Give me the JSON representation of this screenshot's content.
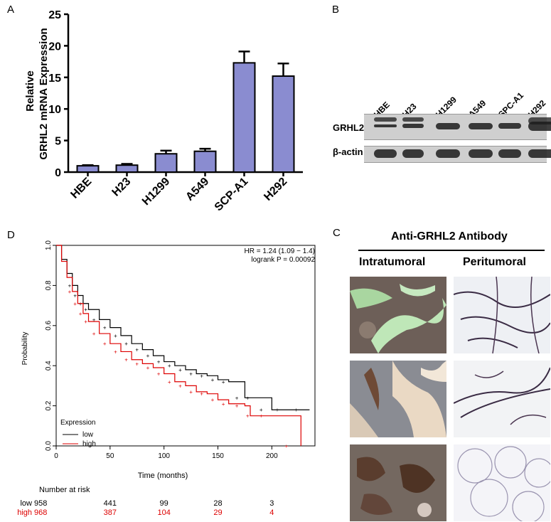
{
  "panels": {
    "a": "A",
    "b": "B",
    "c": "C",
    "d": "D"
  },
  "chart_data": [
    {
      "type": "bar",
      "panel": "A",
      "title": "",
      "ylabel_line1": "Relative",
      "ylabel_line2": "GRHL2 mRNA Expression",
      "xlabel": "",
      "ylim": [
        0,
        25
      ],
      "yticks": [
        0,
        5,
        10,
        15,
        20,
        25
      ],
      "categories": [
        "HBE",
        "H23",
        "H1299",
        "A549",
        "SCP-A1",
        "H292"
      ],
      "values": [
        1.0,
        1.1,
        2.9,
        3.3,
        17.3,
        15.2
      ],
      "errors": [
        0.1,
        0.2,
        0.5,
        0.4,
        1.8,
        2.0
      ],
      "bar_color": "#8a8cd0"
    },
    {
      "type": "line",
      "panel": "D",
      "title": "",
      "xlabel": "Time (months)",
      "ylabel": "Probability",
      "xlim": [
        0,
        240
      ],
      "ylim": [
        0,
        1.0
      ],
      "xticks": [
        0,
        50,
        100,
        150,
        200
      ],
      "yticks": [
        0.0,
        0.2,
        0.4,
        0.6,
        0.8,
        1.0
      ],
      "annotation_hr": "HR = 1.24 (1.09 − 1.4)",
      "annotation_p": "logrank P = 0.00092",
      "legend_title": "Expression",
      "legend_position": "bottom-left",
      "series": [
        {
          "name": "low",
          "color": "#000000",
          "x": [
            0,
            5,
            10,
            15,
            20,
            25,
            30,
            40,
            50,
            60,
            70,
            80,
            90,
            100,
            110,
            120,
            130,
            140,
            150,
            160,
            175,
            180,
            200,
            210,
            235
          ],
          "y": [
            1.0,
            0.93,
            0.86,
            0.8,
            0.75,
            0.71,
            0.68,
            0.63,
            0.59,
            0.55,
            0.51,
            0.48,
            0.45,
            0.42,
            0.4,
            0.38,
            0.36,
            0.35,
            0.33,
            0.32,
            0.24,
            0.24,
            0.18,
            0.18,
            0.18
          ]
        },
        {
          "name": "high",
          "color": "#dd0000",
          "x": [
            0,
            5,
            10,
            15,
            20,
            25,
            30,
            40,
            50,
            60,
            70,
            80,
            90,
            100,
            110,
            120,
            130,
            140,
            150,
            160,
            175,
            180,
            200,
            227
          ],
          "y": [
            1.0,
            0.92,
            0.84,
            0.77,
            0.71,
            0.66,
            0.62,
            0.56,
            0.51,
            0.47,
            0.43,
            0.41,
            0.39,
            0.36,
            0.32,
            0.3,
            0.27,
            0.26,
            0.23,
            0.21,
            0.2,
            0.15,
            0.15,
            0.0
          ]
        }
      ],
      "risk_table": {
        "header": "Number at risk",
        "rows": [
          {
            "name": "low",
            "color": "#000000",
            "counts": [
              "958",
              "441",
              "99",
              "28",
              "3"
            ]
          },
          {
            "name": "high",
            "color": "#dd0000",
            "counts": [
              "968",
              "387",
              "104",
              "29",
              "4"
            ]
          }
        ]
      }
    }
  ],
  "western_blot": {
    "lanes": [
      "HBE",
      "H23",
      "H1299",
      "A549",
      "SPC-A1",
      "H292"
    ],
    "rows": [
      "GRHL2",
      "β-actin"
    ]
  },
  "ihc": {
    "title": "Anti-GRHL2 Antibody",
    "columns": [
      "Intratumoral",
      "Peritumoral"
    ]
  }
}
